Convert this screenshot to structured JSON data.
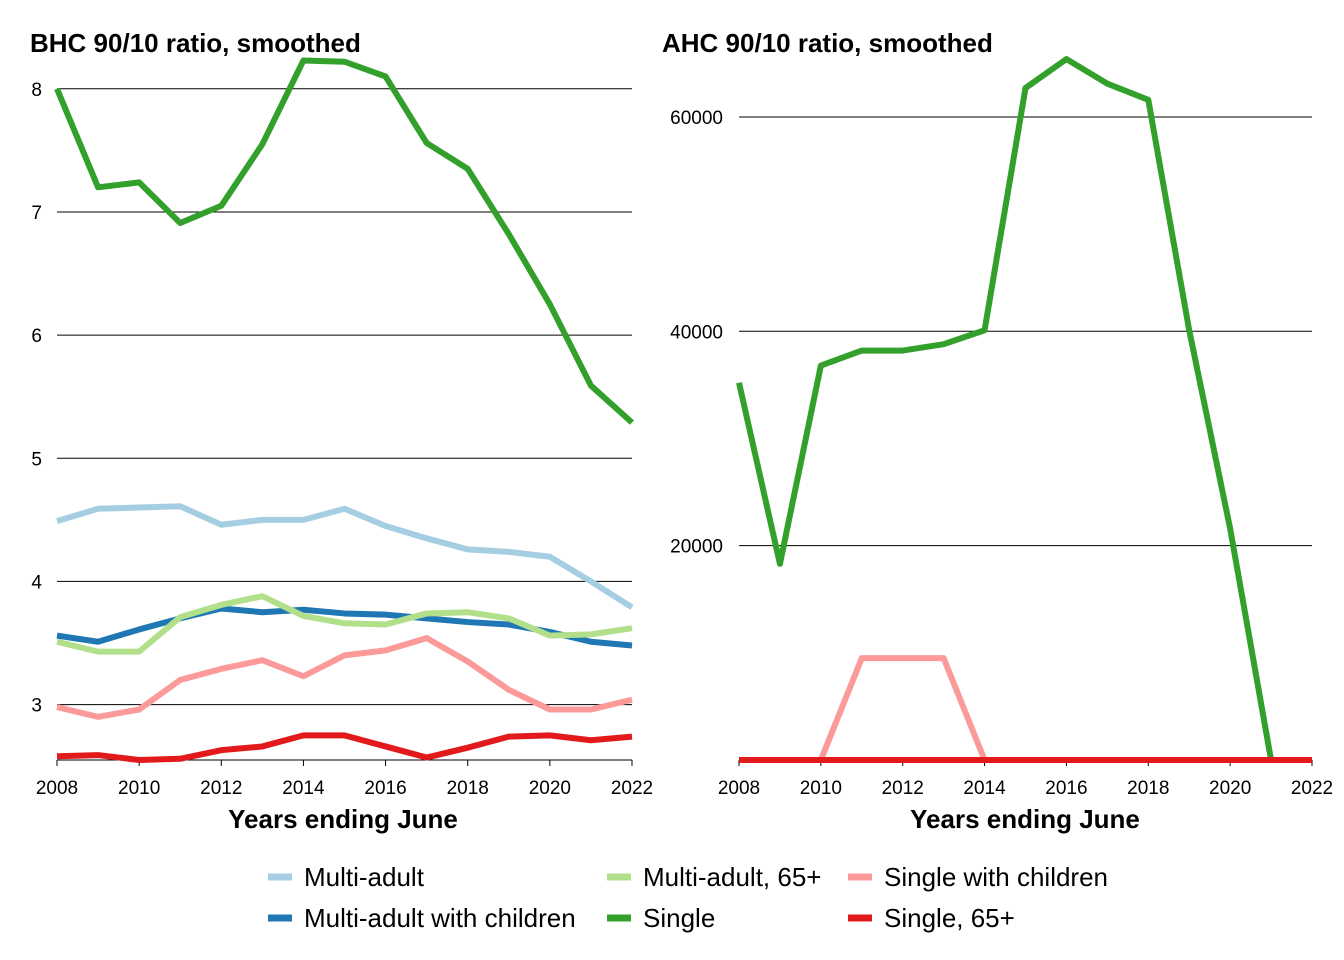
{
  "chart_data": [
    {
      "type": "line",
      "title": "BHC 90/10 ratio, smoothed",
      "xlabel": "Years ending June",
      "ylabel": "",
      "x": [
        2008,
        2009,
        2010,
        2011,
        2012,
        2013,
        2014,
        2015,
        2016,
        2017,
        2018,
        2019,
        2020,
        2021,
        2022
      ],
      "xlim": [
        2008,
        2022
      ],
      "ylim": [
        2.55,
        8.25
      ],
      "xticks": [
        2008,
        2010,
        2012,
        2014,
        2016,
        2018,
        2020,
        2022
      ],
      "yticks": [
        3,
        4,
        5,
        6,
        7,
        8
      ],
      "grid": "horizontal",
      "series": [
        {
          "name": "Multi-adult",
          "color": "#a6cee3",
          "values": [
            4.49,
            4.59,
            4.6,
            4.61,
            4.46,
            4.5,
            4.5,
            4.59,
            4.45,
            4.35,
            4.26,
            4.24,
            4.2,
            4.0,
            3.79
          ]
        },
        {
          "name": "Multi-adult with children",
          "color": "#1f78b4",
          "values": [
            3.56,
            3.51,
            3.61,
            3.7,
            3.78,
            3.75,
            3.77,
            3.74,
            3.73,
            3.7,
            3.67,
            3.65,
            3.59,
            3.51,
            3.48
          ]
        },
        {
          "name": "Multi-adult, 65+",
          "color": "#b2df8a",
          "values": [
            3.51,
            3.43,
            3.43,
            3.71,
            3.81,
            3.88,
            3.72,
            3.66,
            3.65,
            3.74,
            3.75,
            3.7,
            3.56,
            3.57,
            3.62
          ]
        },
        {
          "name": "Single",
          "color": "#33a02c",
          "values": [
            8.0,
            7.2,
            7.24,
            6.91,
            7.05,
            7.55,
            8.23,
            8.22,
            8.1,
            7.56,
            7.35,
            6.82,
            6.25,
            5.59,
            5.29
          ]
        },
        {
          "name": "Single with children",
          "color": "#fb9a99",
          "values": [
            2.98,
            2.9,
            2.96,
            3.2,
            3.29,
            3.36,
            3.23,
            3.4,
            3.44,
            3.54,
            3.35,
            3.12,
            2.96,
            2.96,
            3.04
          ]
        },
        {
          "name": "Single, 65+",
          "color": "#e31a1c",
          "values": [
            2.58,
            2.59,
            2.55,
            2.56,
            2.63,
            2.66,
            2.75,
            2.75,
            2.66,
            2.57,
            2.65,
            2.74,
            2.75,
            2.71,
            2.74
          ]
        }
      ]
    },
    {
      "type": "line",
      "title": "AHC 90/10 ratio, smoothed",
      "xlabel": "Years ending June",
      "ylabel": "",
      "x": [
        2008,
        2009,
        2010,
        2011,
        2012,
        2013,
        2014,
        2015,
        2016,
        2017,
        2018,
        2019,
        2020,
        2021,
        2022
      ],
      "xlim": [
        2008,
        2022
      ],
      "ylim": [
        0,
        65500
      ],
      "xticks": [
        2008,
        2010,
        2012,
        2014,
        2016,
        2018,
        2020,
        2022
      ],
      "yticks": [
        20000,
        40000,
        60000
      ],
      "grid": "horizontal",
      "series": [
        {
          "name": "Multi-adult",
          "color": "#a6cee3",
          "values": [
            0,
            0,
            0,
            0,
            0,
            0,
            0,
            0,
            0,
            0,
            0,
            0,
            0,
            0,
            0
          ]
        },
        {
          "name": "Multi-adult with children",
          "color": "#1f78b4",
          "values": [
            0,
            0,
            0,
            0,
            0,
            0,
            0,
            0,
            0,
            0,
            0,
            0,
            0,
            0,
            0
          ]
        },
        {
          "name": "Multi-adult, 65+",
          "color": "#b2df8a",
          "values": [
            0,
            0,
            0,
            0,
            0,
            0,
            0,
            0,
            0,
            0,
            0,
            0,
            0,
            0,
            0
          ]
        },
        {
          "name": "Single",
          "color": "#33a02c",
          "values": [
            35200,
            18300,
            36800,
            38200,
            38200,
            38800,
            40100,
            62700,
            65400,
            63100,
            61600,
            40100,
            21600,
            0,
            0
          ]
        },
        {
          "name": "Single with children",
          "color": "#fb9a99",
          "values": [
            0,
            0,
            0,
            9500,
            9500,
            9500,
            0,
            0,
            0,
            0,
            0,
            0,
            0,
            0,
            0
          ]
        },
        {
          "name": "Single, 65+",
          "color": "#e31a1c",
          "values": [
            0,
            0,
            0,
            0,
            0,
            0,
            0,
            0,
            0,
            0,
            0,
            0,
            0,
            0,
            0
          ]
        }
      ]
    }
  ],
  "legend": {
    "placement": "bottom",
    "items": [
      {
        "label": "Multi-adult",
        "color": "#a6cee3"
      },
      {
        "label": "Multi-adult, 65+",
        "color": "#b2df8a"
      },
      {
        "label": "Single with children",
        "color": "#fb9a99"
      },
      {
        "label": "Multi-adult with children",
        "color": "#1f78b4"
      },
      {
        "label": "Single",
        "color": "#33a02c"
      },
      {
        "label": "Single, 65+",
        "color": "#e31a1c"
      }
    ]
  }
}
